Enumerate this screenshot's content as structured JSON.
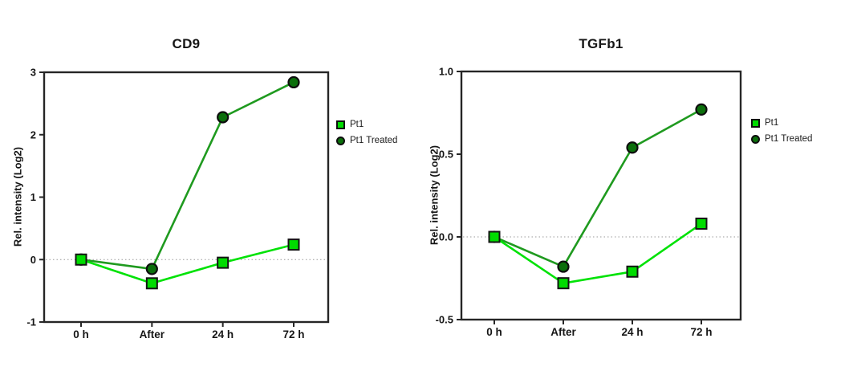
{
  "figure": {
    "background": "#ffffff"
  },
  "legend": {
    "entries": [
      {
        "label": "Pt1",
        "swatch": "square",
        "color": "#00df00"
      },
      {
        "label": "Pt1 Treated",
        "swatch": "circle",
        "color": "#0b6f0b"
      }
    ]
  },
  "chart_data": [
    {
      "type": "line",
      "title": "CD9",
      "xlabel": "",
      "ylabel": "Rel. intensity (Log2)",
      "categories": [
        "0 h",
        "After",
        "24 h",
        "72 h"
      ],
      "ylim": [
        -1,
        3
      ],
      "yticks": [
        -1,
        0,
        1,
        2,
        3
      ],
      "ytick_labels": [
        "-1",
        "0",
        "1",
        "2",
        "3"
      ],
      "grid": false,
      "zero_line": {
        "show": true,
        "style": "dotted",
        "color": "#9a9a9a"
      },
      "legend_position": "right",
      "series": [
        {
          "name": "Pt1",
          "marker": "square",
          "line_color": "#00e206",
          "marker_fill": "#00dc00",
          "marker_edge": "#141414",
          "values": [
            0.0,
            -0.38,
            -0.05,
            0.24
          ]
        },
        {
          "name": "Pt1 Treated",
          "marker": "circle",
          "line_color": "#1f9a1f",
          "marker_fill": "#0b6f0b",
          "marker_edge": "#0d0d0d",
          "values": [
            0.0,
            -0.15,
            2.28,
            2.84
          ]
        }
      ]
    },
    {
      "type": "line",
      "title": "TGFb1",
      "xlabel": "",
      "ylabel": "Rel. intensity (Log2)",
      "categories": [
        "0 h",
        "After",
        "24 h",
        "72 h"
      ],
      "ylim": [
        -0.5,
        1.0
      ],
      "yticks": [
        -0.5,
        0.0,
        0.5,
        1.0
      ],
      "ytick_labels": [
        "-0.5",
        "0.0",
        "0.5",
        "1.0"
      ],
      "grid": false,
      "zero_line": {
        "show": true,
        "style": "dotted",
        "color": "#9a9a9a"
      },
      "legend_position": "right",
      "series": [
        {
          "name": "Pt1",
          "marker": "square",
          "line_color": "#00e206",
          "marker_fill": "#00dc00",
          "marker_edge": "#141414",
          "values": [
            0.0,
            -0.28,
            -0.21,
            0.08
          ]
        },
        {
          "name": "Pt1 Treated",
          "marker": "circle",
          "line_color": "#1f9a1f",
          "marker_fill": "#0b6f0b",
          "marker_edge": "#0d0d0d",
          "values": [
            0.0,
            -0.18,
            0.54,
            0.77
          ]
        }
      ]
    }
  ]
}
